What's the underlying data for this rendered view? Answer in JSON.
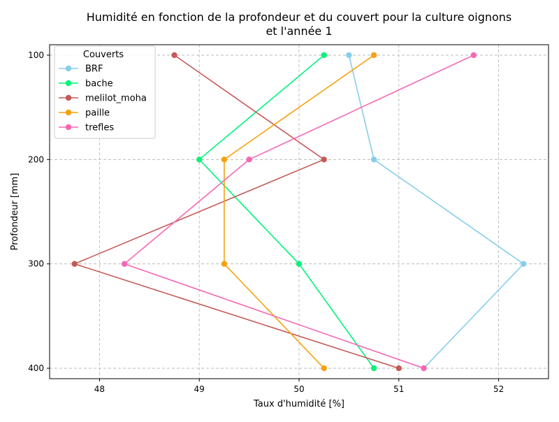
{
  "chart_data": {
    "type": "line",
    "title_line1": "Humidité en fonction de la profondeur et du couvert pour la culture oignons",
    "title_line2": "et l'année 1",
    "xlabel": "Taux d'humidité [%]",
    "ylabel": "Profondeur [mm]",
    "xlim": [
      47.5,
      52.5
    ],
    "ylim": [
      410,
      90
    ],
    "y_inverted": true,
    "x_ticks": [
      48,
      49,
      50,
      51,
      52
    ],
    "y_ticks": [
      100,
      200,
      300,
      400
    ],
    "grid": true,
    "legend_title": "Couverts",
    "legend_position": "top-left",
    "series": [
      {
        "name": "BRF",
        "color": "#87ceeb",
        "points": [
          [
            50.5,
            100
          ],
          [
            50.75,
            200
          ],
          [
            52.25,
            300
          ],
          [
            51.25,
            400
          ]
        ]
      },
      {
        "name": "bache",
        "color": "#00f47a",
        "points": [
          [
            50.25,
            100
          ],
          [
            49.0,
            200
          ],
          [
            50.0,
            300
          ],
          [
            50.75,
            400
          ]
        ]
      },
      {
        "name": "melilot_moha",
        "color": "#c45b57",
        "points": [
          [
            48.75,
            100
          ],
          [
            50.25,
            200
          ],
          [
            47.75,
            300
          ],
          [
            51.0,
            400
          ]
        ]
      },
      {
        "name": "paille",
        "color": "#f5a20f",
        "points": [
          [
            50.75,
            100
          ],
          [
            49.25,
            200
          ],
          [
            49.25,
            300
          ],
          [
            50.25,
            400
          ]
        ]
      },
      {
        "name": "trefles",
        "color": "#f567b5",
        "points": [
          [
            51.75,
            100
          ],
          [
            49.5,
            200
          ],
          [
            48.25,
            300
          ],
          [
            51.25,
            400
          ]
        ]
      }
    ]
  }
}
